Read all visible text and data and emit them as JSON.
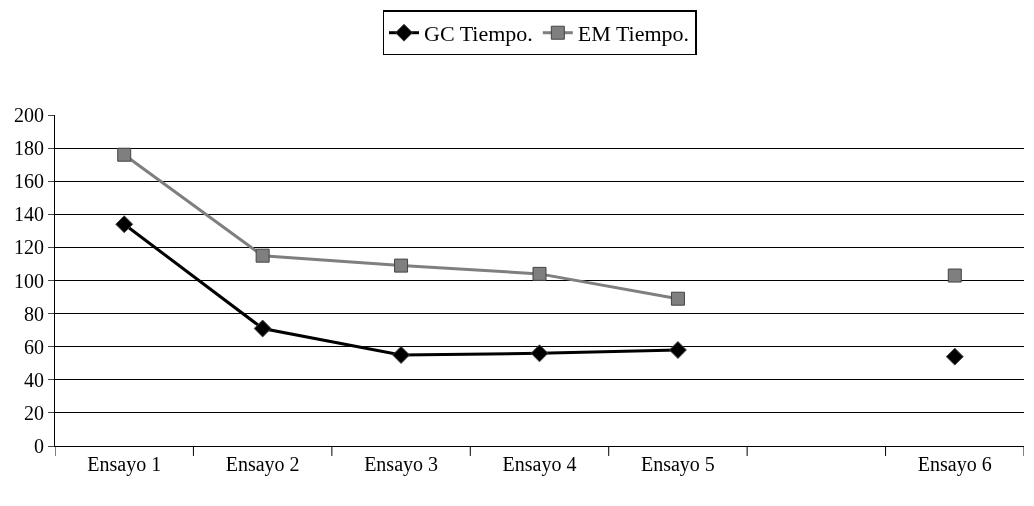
{
  "chart_data": {
    "type": "line",
    "categories": [
      "Ensayo 1",
      "Ensayo 2",
      "Ensayo 3",
      "Ensayo 4",
      "Ensayo 5",
      null,
      "Ensayo 6"
    ],
    "series": [
      {
        "name": "GC Tiempo.",
        "color": "#000000",
        "marker": "diamond",
        "values": [
          134,
          71,
          55,
          56,
          58,
          null,
          54
        ]
      },
      {
        "name": "EM Tiempo.",
        "color": "#7f7f7f",
        "marker": "square",
        "values": [
          176,
          115,
          109,
          104,
          89,
          null,
          103
        ]
      }
    ],
    "ylim": [
      0,
      200
    ],
    "yticks": [
      0,
      20,
      40,
      60,
      80,
      100,
      120,
      140,
      160,
      180,
      200
    ],
    "grid": "y",
    "legend": "top",
    "line_style": "solid"
  }
}
